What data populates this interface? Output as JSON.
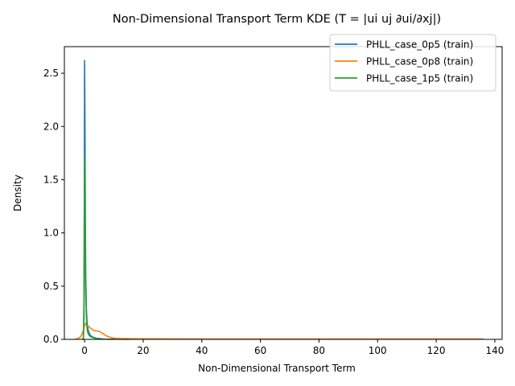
{
  "chart_data": {
    "type": "line",
    "title": "Non-Dimensional Transport Term KDE (T = |ui uj ∂ui/∂xj|)",
    "xlabel": "Non-Dimensional Transport Term",
    "ylabel": "Density",
    "xlim": [
      -6.9,
      142.5
    ],
    "ylim": [
      0,
      2.75
    ],
    "xticks": [
      0,
      20,
      40,
      60,
      80,
      100,
      120,
      140
    ],
    "yticks": [
      0.0,
      0.5,
      1.0,
      1.5,
      2.0,
      2.5
    ],
    "xtick_labels": [
      "0",
      "20",
      "40",
      "60",
      "80",
      "100",
      "120",
      "140"
    ],
    "ytick_labels": [
      "0.0",
      "0.5",
      "1.0",
      "1.5",
      "2.0",
      "2.5"
    ],
    "grid": false,
    "legend_position": "top-right",
    "series": [
      {
        "name": "PHLL_case_0p5 (train)",
        "color": "#1f77b4",
        "x": [
          -0.6,
          -0.4,
          -0.2,
          -0.1,
          0.0,
          0.1,
          0.2,
          0.3,
          0.4,
          0.6,
          0.8,
          1.0,
          1.3,
          1.7,
          2.2,
          3.0,
          4.0,
          6.0,
          10.0,
          15.0
        ],
        "y": [
          0.0,
          0.01,
          0.2,
          1.2,
          2.62,
          2.2,
          1.5,
          0.95,
          0.6,
          0.3,
          0.18,
          0.12,
          0.08,
          0.05,
          0.03,
          0.02,
          0.01,
          0.005,
          0.002,
          0.0
        ]
      },
      {
        "name": "PHLL_case_0p8 (train)",
        "color": "#ff7f0e",
        "x": [
          -3.5,
          -2.5,
          -1.5,
          -1.0,
          -0.5,
          0.0,
          0.3,
          0.6,
          1.0,
          1.5,
          2.0,
          2.5,
          3.0,
          4.0,
          5.0,
          6.0,
          7.0,
          8.0,
          9.0,
          10.0,
          12.0,
          15.0,
          20.0,
          30.0,
          50.0,
          80.0,
          110.0,
          136.0
        ],
        "y": [
          0.0,
          0.005,
          0.02,
          0.04,
          0.08,
          0.13,
          0.15,
          0.14,
          0.13,
          0.12,
          0.105,
          0.095,
          0.085,
          0.08,
          0.075,
          0.06,
          0.04,
          0.025,
          0.018,
          0.012,
          0.008,
          0.006,
          0.005,
          0.004,
          0.003,
          0.003,
          0.003,
          0.003
        ]
      },
      {
        "name": "PHLL_case_1p5 (train)",
        "color": "#2ca02c",
        "x": [
          -0.7,
          -0.4,
          -0.2,
          -0.1,
          0.0,
          0.1,
          0.2,
          0.4,
          0.6,
          0.8,
          1.0,
          1.3,
          1.6,
          2.0,
          2.5,
          3.0,
          4.0,
          5.0,
          7.0,
          10.0
        ],
        "y": [
          0.0,
          0.02,
          0.4,
          1.2,
          1.73,
          1.4,
          0.9,
          0.45,
          0.22,
          0.12,
          0.07,
          0.05,
          0.035,
          0.025,
          0.02,
          0.015,
          0.008,
          0.004,
          0.002,
          0.0
        ]
      }
    ]
  }
}
